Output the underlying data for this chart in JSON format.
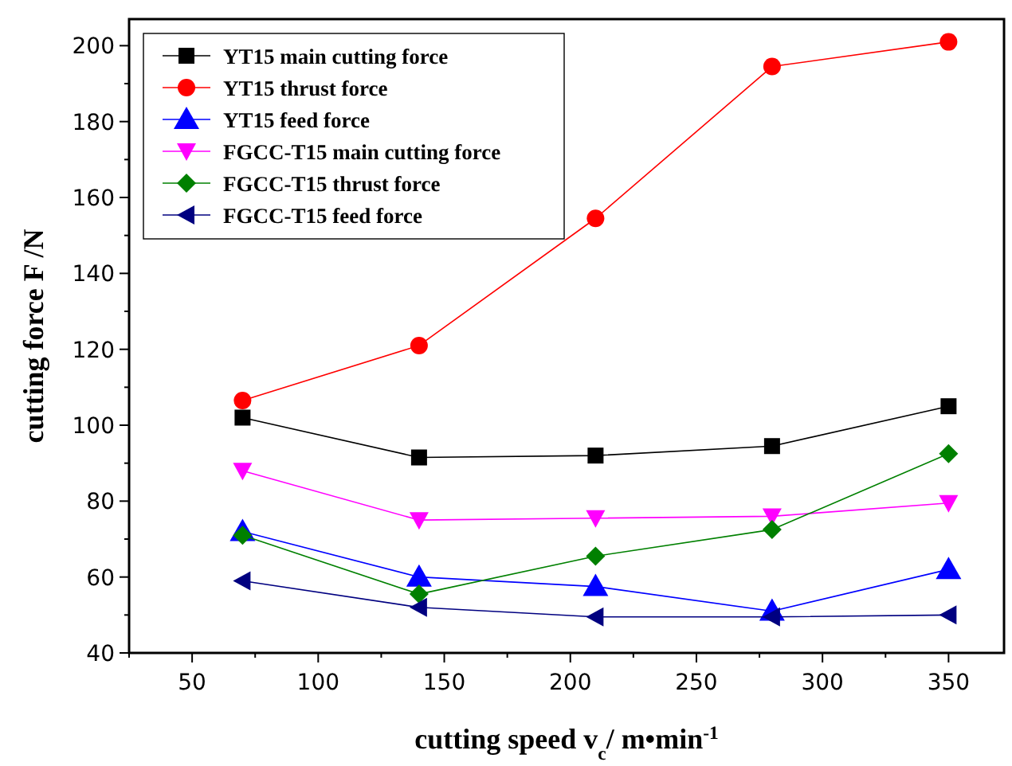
{
  "chart_data": {
    "type": "line",
    "xlabel": "cutting speed v$_{c}$/ m•min$^{-1}$",
    "ylabel": "cutting force F /N",
    "x": [
      70,
      140,
      210,
      280,
      350
    ],
    "xlim": [
      25,
      372
    ],
    "ylim": [
      40,
      207
    ],
    "xticks": [
      {
        "value": 25,
        "label": null
      },
      50,
      {
        "value": 75,
        "label": null
      },
      100,
      {
        "value": 125,
        "label": null
      },
      150,
      {
        "value": 175,
        "label": null
      },
      200,
      {
        "value": 225,
        "label": null
      },
      250,
      {
        "value": 275,
        "label": null
      },
      300,
      {
        "value": 325,
        "label": null
      },
      350
    ],
    "yticks": [
      40,
      {
        "value": 50,
        "label": null
      },
      60,
      {
        "value": 70,
        "label": null
      },
      80,
      {
        "value": 90,
        "label": null
      },
      100,
      {
        "value": 110,
        "label": null
      },
      120,
      {
        "value": 130,
        "label": null
      },
      140,
      {
        "value": 150,
        "label": null
      },
      160,
      {
        "value": 170,
        "label": null
      },
      180,
      {
        "value": 190,
        "label": null
      },
      200
    ],
    "grid": false,
    "legend": "top left",
    "line_style": "solid",
    "series": [
      {
        "name": "YT15 main cutting force",
        "color": "#000000",
        "marker": "square",
        "values": [
          102,
          91.5,
          92,
          94.5,
          105
        ]
      },
      {
        "name": "YT15 thrust force",
        "color": "#ff0000",
        "marker": "circle",
        "values": [
          106.5,
          121,
          154.5,
          194.5,
          201
        ]
      },
      {
        "name": "YT15 feed force",
        "color": "#0000ff",
        "marker": "triangle",
        "values": [
          72,
          60,
          57.5,
          51,
          62
        ]
      },
      {
        "name": "FGCC-T15 main cutting force",
        "color": "#ff00ff",
        "marker": "triangle-down",
        "values": [
          88,
          75,
          75.5,
          76,
          79.5
        ]
      },
      {
        "name": "FGCC-T15 thrust force",
        "color": "#008000",
        "marker": "diamond",
        "values": [
          71,
          55.5,
          65.5,
          72.5,
          92.5
        ]
      },
      {
        "name": "FGCC-T15 feed force",
        "color": "#000080",
        "marker": "triangle-left",
        "values": [
          59,
          52,
          49.5,
          49.5,
          50
        ]
      }
    ]
  }
}
